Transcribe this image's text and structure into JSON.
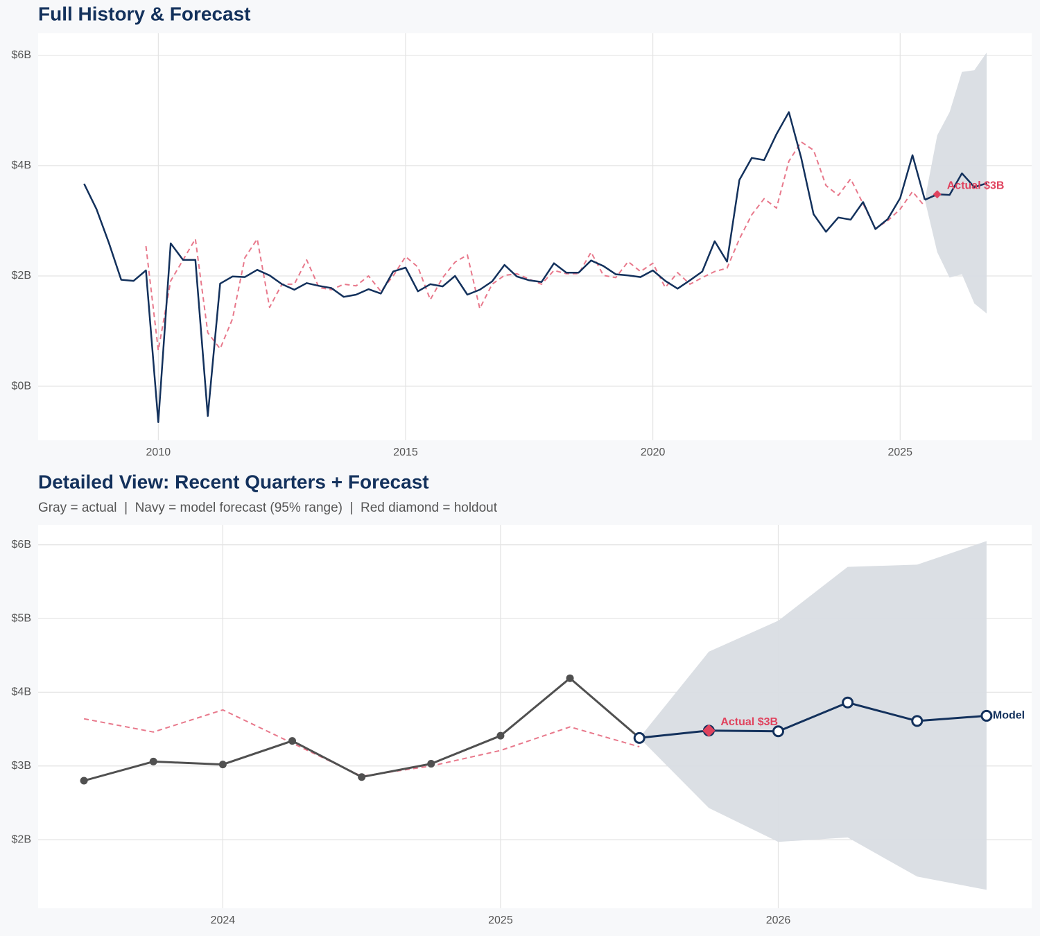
{
  "chart_data": [
    {
      "type": "line",
      "title": "Full History & Forecast",
      "xlim": [
        2007.57,
        2027.66
      ],
      "ylim": [
        -0.98,
        6.4
      ],
      "xticks": [
        2010,
        2015,
        2020,
        2025
      ],
      "yticks": [
        {
          "value": 0,
          "label": "$0B"
        },
        {
          "value": 2,
          "label": "$2B"
        },
        {
          "value": 4,
          "label": "$4B"
        },
        {
          "value": 6,
          "label": "$6B"
        }
      ],
      "grid": true,
      "x": [
        2008.5,
        2008.75,
        2009,
        2009.25,
        2009.5,
        2009.75,
        2010,
        2010.25,
        2010.5,
        2010.75,
        2011,
        2011.25,
        2011.5,
        2011.75,
        2012,
        2012.25,
        2012.5,
        2012.75,
        2013,
        2013.25,
        2013.5,
        2013.75,
        2014,
        2014.25,
        2014.5,
        2014.75,
        2015,
        2015.25,
        2015.5,
        2015.75,
        2016,
        2016.25,
        2016.5,
        2016.75,
        2017,
        2017.25,
        2017.5,
        2017.75,
        2018,
        2018.25,
        2018.5,
        2018.75,
        2019,
        2019.25,
        2019.5,
        2019.75,
        2020,
        2020.25,
        2020.5,
        2020.75,
        2021,
        2021.25,
        2021.5,
        2021.75,
        2022,
        2022.25,
        2022.5,
        2022.75,
        2023,
        2023.25,
        2023.5,
        2023.75,
        2024,
        2024.25,
        2024.5,
        2024.75,
        2025,
        2025.25,
        2025.5
      ],
      "band": {
        "color": "#d9dde3",
        "x": [
          2025.5,
          2025.75,
          2026,
          2026.25,
          2026.5,
          2026.75
        ],
        "upper": [
          3.38,
          4.55,
          4.97,
          5.7,
          5.73,
          6.05
        ],
        "lower": [
          3.38,
          2.43,
          1.97,
          2.03,
          1.5,
          1.32
        ]
      },
      "series": [
        {
          "color": "#e8788b",
          "dashed": true,
          "markers": "none",
          "values": [
            null,
            null,
            null,
            null,
            null,
            2.54,
            0.65,
            1.91,
            2.29,
            2.67,
            0.97,
            0.68,
            1.22,
            2.33,
            2.67,
            1.43,
            1.85,
            1.85,
            2.29,
            1.79,
            1.75,
            1.85,
            1.82,
            2.0,
            1.72,
            2.0,
            2.35,
            2.16,
            1.57,
            1.97,
            2.25,
            2.38,
            1.41,
            1.85,
            2.01,
            2.04,
            1.94,
            1.85,
            2.1,
            2.04,
            2.04,
            2.43,
            2.01,
            1.97,
            2.26,
            2.08,
            2.23,
            1.79,
            2.06,
            1.85,
            1.97,
            2.08,
            2.14,
            2.67,
            3.11,
            3.4,
            3.23,
            4.08,
            4.43,
            4.28,
            3.64,
            3.46,
            3.76,
            3.31,
            2.86,
            3.0,
            3.21,
            3.53,
            3.26
          ]
        },
        {
          "color": "#13315c",
          "dashed": false,
          "markers": "none",
          "values": [
            3.67,
            3.21,
            2.6,
            1.93,
            1.91,
            2.1,
            -0.65,
            2.59,
            2.29,
            2.29,
            -0.54,
            1.86,
            1.99,
            1.98,
            2.11,
            2.01,
            1.85,
            1.75,
            1.87,
            1.82,
            1.78,
            1.62,
            1.66,
            1.76,
            1.68,
            2.08,
            2.15,
            1.72,
            1.85,
            1.81,
            2.0,
            1.66,
            1.75,
            1.9,
            2.2,
            1.99,
            1.92,
            1.89,
            2.23,
            2.06,
            2.06,
            2.28,
            2.18,
            2.03,
            2.01,
            1.98,
            2.1,
            1.91,
            1.77,
            1.92,
            2.08,
            2.63,
            2.26,
            3.74,
            4.14,
            4.1,
            4.57,
            4.97,
            4.14,
            3.12,
            2.8,
            3.06,
            3.02,
            3.34,
            2.85,
            3.03,
            3.41,
            4.19,
            3.38
          ]
        },
        {
          "color": "#13315c",
          "dashed": false,
          "markers": "none",
          "x": [
            2025.5,
            2025.75,
            2026,
            2026.25,
            2026.5,
            2026.75
          ],
          "values": [
            3.38,
            3.48,
            3.47,
            3.86,
            3.61,
            3.68
          ]
        }
      ],
      "points": [
        {
          "x": 2025.75,
          "y": 3.48,
          "label": "Actual $3B",
          "color": "#e0435e",
          "size": 6
        }
      ]
    },
    {
      "type": "line",
      "title": "Detailed View: Recent Quarters + Forecast",
      "subtitle": "Gray = actual  |  Navy = model forecast (95% range)  |  Red diamond = holdout",
      "xlim": [
        2023.335,
        2026.9125
      ],
      "ylim": [
        1.07,
        6.27
      ],
      "xticks": [
        2024,
        2025,
        2026
      ],
      "yticks": [
        {
          "value": 2,
          "label": "$2B"
        },
        {
          "value": 3,
          "label": "$3B"
        },
        {
          "value": 4,
          "label": "$4B"
        },
        {
          "value": 5,
          "label": "$5B"
        },
        {
          "value": 6,
          "label": "$6B"
        }
      ],
      "grid": true,
      "x": [
        2023.5,
        2023.75,
        2024,
        2024.25,
        2024.5,
        2024.75,
        2025,
        2025.25,
        2025.5
      ],
      "band": {
        "color": "#d9dde3",
        "x": [
          2025.5,
          2025.75,
          2026,
          2026.25,
          2026.5,
          2026.75
        ],
        "upper": [
          3.38,
          4.55,
          4.97,
          5.7,
          5.73,
          6.05
        ],
        "lower": [
          3.38,
          2.43,
          1.97,
          2.03,
          1.5,
          1.32
        ]
      },
      "series": [
        {
          "color": "#e8788b",
          "dashed": true,
          "markers": "none",
          "values": [
            3.64,
            3.46,
            3.76,
            3.31,
            2.86,
            3.0,
            3.21,
            3.53,
            3.26
          ]
        },
        {
          "color": "#505050",
          "dashed": false,
          "markers": "dot",
          "values": [
            2.8,
            3.06,
            3.02,
            3.34,
            2.85,
            3.03,
            3.41,
            4.19,
            3.38
          ]
        },
        {
          "color": "#13315c",
          "dashed": false,
          "markers": "ring",
          "label": "Model",
          "x": [
            2025.5,
            2025.75,
            2026,
            2026.25,
            2026.5,
            2026.75
          ],
          "values": [
            3.38,
            3.48,
            3.47,
            3.86,
            3.61,
            3.68
          ]
        }
      ],
      "points": [
        {
          "x": 2025.75,
          "y": 3.48,
          "label": "Actual $3B",
          "color": "#e0435e",
          "size": 9
        }
      ]
    }
  ]
}
